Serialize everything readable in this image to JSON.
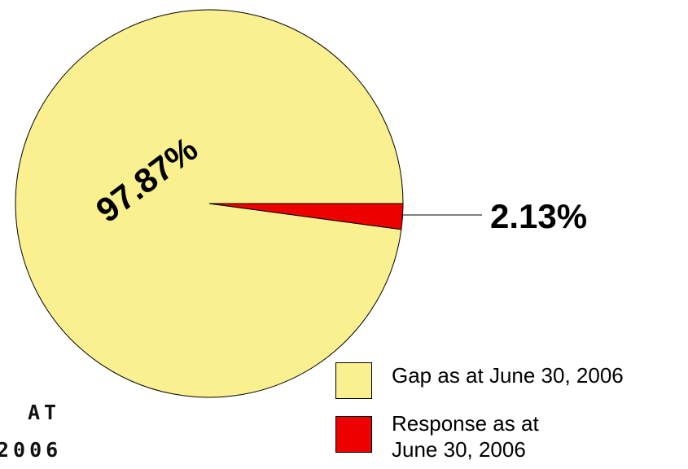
{
  "chart_data": {
    "type": "pie",
    "title": "",
    "slices": [
      {
        "label": "Gap as at June 30, 2006",
        "value": 97.87,
        "display": "97.87%",
        "color": "#FAF08F"
      },
      {
        "label": "Response as at\nJune 30, 2006",
        "value": 2.13,
        "display": "2.13%",
        "color": "#EE0000"
      }
    ]
  },
  "partial_text": {
    "line1": "AT",
    "line2": "2006"
  }
}
